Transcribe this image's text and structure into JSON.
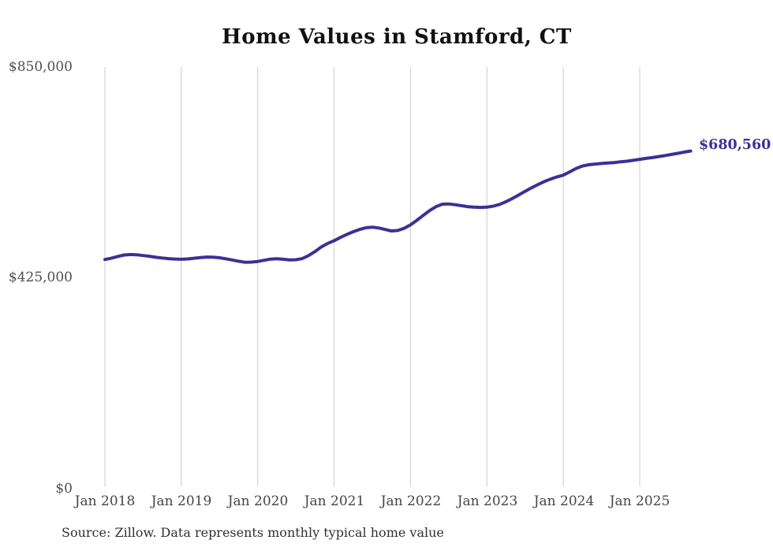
{
  "page": {
    "source_note": "Source: Zillow. Data represents monthly typical home value"
  },
  "chart_data": {
    "type": "line",
    "title": "Home Values in Stamford, CT",
    "ylabel": "",
    "xlabel": "",
    "ylim": [
      0,
      850000
    ],
    "grid": "vertical-only",
    "line_color": "#3a3196",
    "gridline_color": "#cccccc",
    "end_label": "$680,560",
    "end_value": 680560,
    "y_tick_labels": [
      "$850,000",
      "$425,000",
      "$0"
    ],
    "y_tick_values": [
      850000,
      425000,
      0
    ],
    "x_tick_labels": [
      "Jan 2018",
      "Jan 2019",
      "Jan 2020",
      "Jan 2021",
      "Jan 2022",
      "Jan 2023",
      "Jan 2024",
      "Jan 2025"
    ],
    "x": [
      "2018-01",
      "2018-02",
      "2018-03",
      "2018-04",
      "2018-05",
      "2018-06",
      "2018-07",
      "2018-08",
      "2018-09",
      "2018-10",
      "2018-11",
      "2018-12",
      "2019-01",
      "2019-02",
      "2019-03",
      "2019-04",
      "2019-05",
      "2019-06",
      "2019-07",
      "2019-08",
      "2019-09",
      "2019-10",
      "2019-11",
      "2019-12",
      "2020-01",
      "2020-02",
      "2020-03",
      "2020-04",
      "2020-05",
      "2020-06",
      "2020-07",
      "2020-08",
      "2020-09",
      "2020-10",
      "2020-11",
      "2020-12",
      "2021-01",
      "2021-02",
      "2021-03",
      "2021-04",
      "2021-05",
      "2021-06",
      "2021-07",
      "2021-08",
      "2021-09",
      "2021-10",
      "2021-11",
      "2021-12",
      "2022-01",
      "2022-02",
      "2022-03",
      "2022-04",
      "2022-05",
      "2022-06",
      "2022-07",
      "2022-08",
      "2022-09",
      "2022-10",
      "2022-11",
      "2022-12",
      "2023-01",
      "2023-02",
      "2023-03",
      "2023-04",
      "2023-05",
      "2023-06",
      "2023-07",
      "2023-08",
      "2023-09",
      "2023-10",
      "2023-11",
      "2023-12",
      "2024-01",
      "2024-02",
      "2024-03",
      "2024-04",
      "2024-05",
      "2024-06",
      "2024-07",
      "2024-08",
      "2024-09",
      "2024-10",
      "2024-11",
      "2024-12",
      "2025-01",
      "2025-02",
      "2025-03",
      "2025-04",
      "2025-05",
      "2025-06",
      "2025-07",
      "2025-08",
      "2025-09"
    ],
    "series": [
      {
        "name": "Typical home value",
        "values": [
          462000,
          464500,
          468000,
          471000,
          472000,
          471500,
          470000,
          468500,
          466500,
          465000,
          463800,
          463000,
          462500,
          463200,
          464500,
          466000,
          467000,
          466800,
          465500,
          463500,
          461000,
          458500,
          456500,
          456800,
          458000,
          460500,
          462800,
          463500,
          462500,
          461000,
          461500,
          464000,
          470000,
          478000,
          487500,
          494500,
          500000,
          506500,
          512500,
          518000,
          522500,
          526000,
          527200,
          525500,
          522500,
          519500,
          520500,
          525000,
          532000,
          541000,
          551000,
          560500,
          568500,
          573500,
          574000,
          572500,
          570500,
          568500,
          567500,
          567000,
          567500,
          569500,
          573000,
          578500,
          585000,
          592000,
          599500,
          606500,
          613000,
          619000,
          624000,
          628500,
          632000,
          638500,
          645500,
          650500,
          653000,
          654500,
          655500,
          656500,
          657500,
          658800,
          660200,
          662000,
          664000,
          665800,
          667500,
          669500,
          671500,
          673800,
          676000,
          678500,
          680560
        ]
      }
    ]
  }
}
